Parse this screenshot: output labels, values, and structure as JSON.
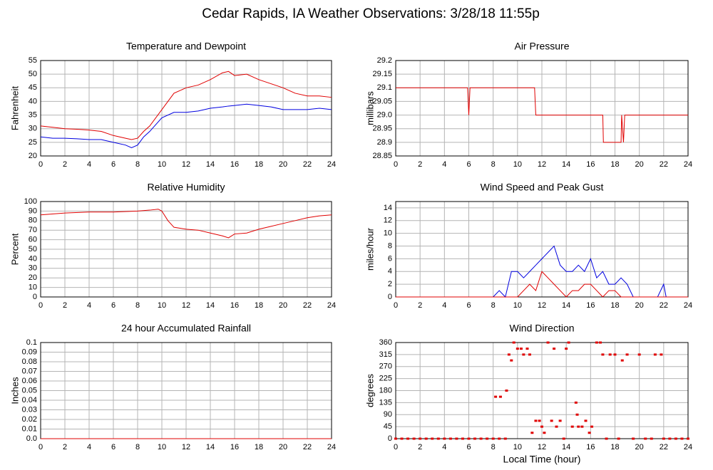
{
  "title": "Cedar Rapids, IA Weather Observations: 3/28/18 11:55p",
  "chart_data": [
    {
      "type": "line",
      "title": "Temperature and Dewpoint",
      "y_label": "Fahrenheit",
      "x": [
        0,
        1,
        2,
        3,
        4,
        5,
        6,
        7,
        7.5,
        8,
        8.5,
        9,
        10,
        11,
        12,
        13,
        14,
        15,
        15.5,
        16,
        17,
        18,
        19,
        20,
        21,
        22,
        23,
        24
      ],
      "series": [
        {
          "color": "#e00000",
          "values": [
            31,
            30.5,
            30,
            29.8,
            29.5,
            29,
            27.5,
            26.5,
            26,
            26.5,
            29,
            31,
            37,
            43,
            45,
            46,
            48,
            50.5,
            51,
            49.5,
            50,
            48,
            46.5,
            45,
            43,
            42,
            42,
            41.5
          ]
        },
        {
          "color": "#0000e0",
          "values": [
            27,
            26.5,
            26.5,
            26.3,
            26,
            26,
            25,
            24,
            23,
            24,
            27,
            29,
            34,
            36,
            36,
            36.5,
            37.5,
            38,
            38.3,
            38.5,
            39,
            38.5,
            38,
            37,
            37,
            37,
            37.5,
            37
          ]
        }
      ],
      "xlim": [
        0,
        24
      ],
      "xticks": [
        0,
        2,
        4,
        6,
        8,
        10,
        12,
        14,
        16,
        18,
        20,
        22,
        24
      ],
      "ylim": [
        20,
        55
      ],
      "yticks": [
        20,
        25,
        30,
        35,
        40,
        45,
        50,
        55
      ],
      "grid": true
    },
    {
      "type": "line",
      "title": "Air Pressure",
      "y_label": "millibars",
      "x": [
        0,
        5.9,
        6,
        6.1,
        11.4,
        11.5,
        17,
        17.05,
        18.5,
        18.55,
        18.7,
        18.8,
        24
      ],
      "series": [
        {
          "color": "#e00000",
          "values": [
            29.1,
            29.1,
            29.0,
            29.1,
            29.1,
            29.0,
            29.0,
            28.9,
            28.9,
            29.0,
            28.9,
            29.0,
            29.0
          ]
        }
      ],
      "xlim": [
        0,
        24
      ],
      "xticks": [
        0,
        2,
        4,
        6,
        8,
        10,
        12,
        14,
        16,
        18,
        20,
        22,
        24
      ],
      "ylim": [
        28.85,
        29.2
      ],
      "yticks": [
        28.85,
        28.9,
        28.95,
        {
          "value": 29,
          "label": "29.0"
        },
        29.05,
        29.1,
        29.15,
        29.2
      ],
      "grid": true
    },
    {
      "type": "line",
      "title": "Relative Humidity",
      "y_label": "Percent",
      "x": [
        0,
        2,
        4,
        6,
        8,
        9,
        9.7,
        10,
        10.5,
        11,
        12,
        13,
        14,
        15,
        15.5,
        16,
        17,
        18,
        19,
        20,
        21,
        22,
        23,
        24
      ],
      "series": [
        {
          "color": "#e00000",
          "values": [
            86,
            88,
            89,
            89,
            90,
            91,
            92,
            90,
            80,
            73,
            71,
            70,
            67,
            64,
            62,
            66,
            67,
            71,
            74,
            77,
            80,
            83,
            85,
            86
          ]
        }
      ],
      "xlim": [
        0,
        24
      ],
      "xticks": [
        0,
        2,
        4,
        6,
        8,
        10,
        12,
        14,
        16,
        18,
        20,
        22,
        24
      ],
      "ylim": [
        0,
        100
      ],
      "yticks": [
        0,
        10,
        20,
        30,
        40,
        50,
        60,
        70,
        80,
        90,
        100
      ],
      "grid": true
    },
    {
      "type": "line",
      "title": "Wind Speed and Peak Gust",
      "y_label": "miles/hour",
      "x": [
        0,
        8,
        8.5,
        9,
        9.5,
        10,
        10.5,
        11,
        11.5,
        12,
        12.5,
        13,
        13.5,
        14,
        14.5,
        15,
        15.5,
        16,
        16.5,
        17,
        17.5,
        18,
        18.5,
        19,
        19.5,
        20,
        21.5,
        22,
        22.2,
        24
      ],
      "series": [
        {
          "color": "#0000e0",
          "values": [
            0,
            0,
            1,
            0,
            4,
            4,
            3,
            4,
            5,
            6,
            7,
            8,
            5,
            4,
            4,
            5,
            4,
            6,
            3,
            4,
            2,
            2,
            3,
            2,
            0,
            0,
            0,
            2,
            0,
            0
          ]
        },
        {
          "color": "#e00000",
          "values": [
            0,
            0,
            0,
            0,
            0,
            0,
            1,
            2,
            1,
            4,
            3,
            2,
            1,
            0,
            1,
            1,
            2,
            2,
            1,
            0,
            1,
            1,
            0,
            0,
            0,
            0,
            0,
            0,
            0,
            0
          ]
        }
      ],
      "xlim": [
        0,
        24
      ],
      "xticks": [
        0,
        2,
        4,
        6,
        8,
        10,
        12,
        14,
        16,
        18,
        20,
        22,
        24
      ],
      "ylim": [
        0,
        15
      ],
      "yticks": [
        0,
        2,
        4,
        6,
        8,
        10,
        12,
        14
      ],
      "grid": true
    },
    {
      "type": "line",
      "title": "24 hour Accumulated Rainfall",
      "y_label": "Inches",
      "x": [
        0,
        24
      ],
      "series": [
        {
          "color": "#e00000",
          "values": [
            0,
            0
          ]
        }
      ],
      "xlim": [
        0,
        24
      ],
      "xticks": [
        0,
        2,
        4,
        6,
        8,
        10,
        12,
        14,
        16,
        18,
        20,
        22,
        24
      ],
      "ylim": [
        0,
        0.1
      ],
      "yticks": [
        {
          "value": 0,
          "label": "0.0"
        },
        0.01,
        0.02,
        0.03,
        0.04,
        0.05,
        0.06,
        0.07,
        0.08,
        0.09,
        0.1
      ],
      "grid": true
    },
    {
      "type": "scatter",
      "title": "Wind Direction",
      "y_label": "degrees",
      "x_label": "Local Time (hour)",
      "x": [
        0,
        0.5,
        1,
        1.5,
        2,
        2.5,
        3,
        3.5,
        4,
        4.5,
        5,
        5.5,
        6,
        6.5,
        7,
        7.5,
        8,
        8.2,
        8.5,
        8.6,
        9,
        9.1,
        9.3,
        9.5,
        9.7,
        10,
        10.3,
        10.5,
        10.8,
        11,
        11.2,
        11.5,
        11.8,
        12,
        12.2,
        12.5,
        12.8,
        13,
        13.2,
        13.5,
        13.8,
        14,
        14.2,
        14.5,
        14.8,
        14.9,
        15,
        15.3,
        15.6,
        15.9,
        16.1,
        16.5,
        16.8,
        17,
        17.3,
        17.6,
        18,
        18.3,
        18.6,
        19,
        19.5,
        20,
        20.5,
        21,
        21.3,
        21.8,
        22,
        22.5,
        23,
        23.5,
        24
      ],
      "series": [
        {
          "color": "#e00000",
          "values": [
            0,
            0,
            0,
            0,
            0,
            0,
            0,
            0,
            0,
            0,
            0,
            0,
            0,
            0,
            0,
            0,
            0,
            157,
            0,
            157,
            0,
            180,
            315,
            293,
            360,
            337,
            337,
            315,
            337,
            315,
            22,
            67,
            67,
            45,
            22,
            360,
            67,
            337,
            45,
            67,
            0,
            337,
            360,
            45,
            135,
            90,
            45,
            45,
            67,
            22,
            45,
            360,
            360,
            315,
            0,
            315,
            315,
            0,
            293,
            315,
            0,
            315,
            0,
            0,
            315,
            315,
            0,
            0,
            0,
            0,
            0
          ]
        }
      ],
      "xlim": [
        0,
        24
      ],
      "xticks": [
        0,
        2,
        4,
        6,
        8,
        10,
        12,
        14,
        16,
        18,
        20,
        22,
        24
      ],
      "ylim": [
        0,
        360
      ],
      "yticks": [
        0,
        45,
        90,
        135,
        180,
        225,
        270,
        315,
        360
      ],
      "grid": true
    }
  ]
}
